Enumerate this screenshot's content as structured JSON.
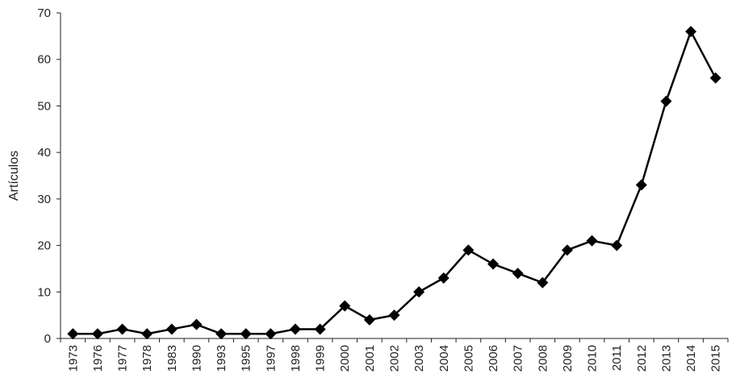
{
  "chart_data": {
    "type": "line",
    "title": "",
    "xlabel": "",
    "ylabel": "Artículos",
    "ylim": [
      0,
      70
    ],
    "yticks": [
      0,
      10,
      20,
      30,
      40,
      50,
      60,
      70
    ],
    "grid": false,
    "legend": "none",
    "categories": [
      "1973",
      "1976",
      "1977",
      "1978",
      "1983",
      "1990",
      "1993",
      "1995",
      "1997",
      "1998",
      "1999",
      "2000",
      "2001",
      "2002",
      "2003",
      "2004",
      "2005",
      "2006",
      "2007",
      "2008",
      "2009",
      "2010",
      "2011",
      "2012",
      "2013",
      "2014",
      "2015"
    ],
    "series": [
      {
        "values": [
          1,
          1,
          2,
          1,
          2,
          3,
          1,
          1,
          1,
          2,
          2,
          7,
          4,
          5,
          10,
          13,
          19,
          16,
          14,
          12,
          19,
          21,
          20,
          33,
          51,
          66,
          56
        ],
        "color": "#000000",
        "marker": "diamond"
      }
    ]
  }
}
